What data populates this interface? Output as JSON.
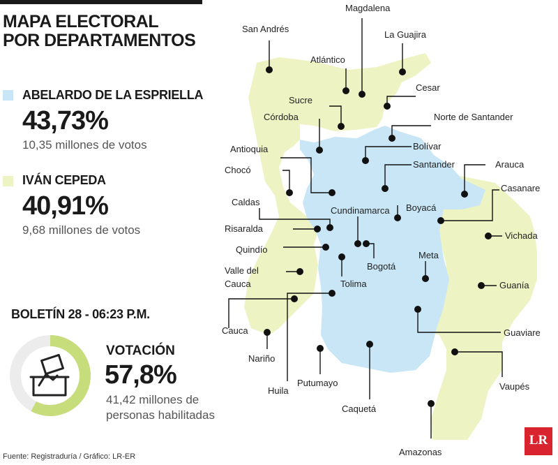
{
  "title_line1": "MAPA ELECTORAL",
  "title_line2": "POR DEPARTAMENTOS",
  "candidates": [
    {
      "name": "ABELARDO DE LA ESPRIELLA",
      "pct": "43,73%",
      "votes": "10,35 millones de votos",
      "color": "#c8e6f5"
    },
    {
      "name": "IVÁN CEPEDA",
      "pct": "40,91%",
      "votes": "9,68 millones de votos",
      "color": "#eef3c4"
    }
  ],
  "bulletin": "BOLETÍN 28 - 06:23 P.M.",
  "turnout": {
    "label": "VOTACIÓN",
    "pct": "57,8%",
    "value": 57.8,
    "line1": "41,42 millones de",
    "line2": "personas habilitadas",
    "ring_color": "#c7dc7a",
    "track_color": "#ececec"
  },
  "source": "Fuente: Registraduría / Gráfico: LR-ER",
  "logo": "LR",
  "departments": {
    "san_andres": "San Andrés",
    "magdalena": "Magdalena",
    "la_guajira": "La Guajira",
    "atlantico": "Atlántico",
    "cesar": "Cesar",
    "sucre": "Sucre",
    "cordoba": "Córdoba",
    "norte_santander": "Norte de Santander",
    "antioquia": "Antioquia",
    "bolivar": "Bolívar",
    "choco": "Chocó",
    "santander": "Santander",
    "arauca": "Arauca",
    "casanare": "Casanare",
    "caldas": "Caldas",
    "cundinamarca": "Cundinamarca",
    "boyaca": "Boyacá",
    "risaralda": "Risaralda",
    "vichada": "Vichada",
    "quindio": "Quindío",
    "bogota": "Bogotá",
    "meta": "Meta",
    "valle_1": "Valle del",
    "valle_2": "Cauca",
    "tolima": "Tolima",
    "guainia": "Guanía",
    "cauca": "Cauca",
    "guaviare": "Guaviare",
    "narino": "Nariño",
    "huila": "Huila",
    "putumayo": "Putumayo",
    "vaupes": "Vaupés",
    "caqueta": "Caquetá",
    "amazonas": "Amazonas"
  }
}
